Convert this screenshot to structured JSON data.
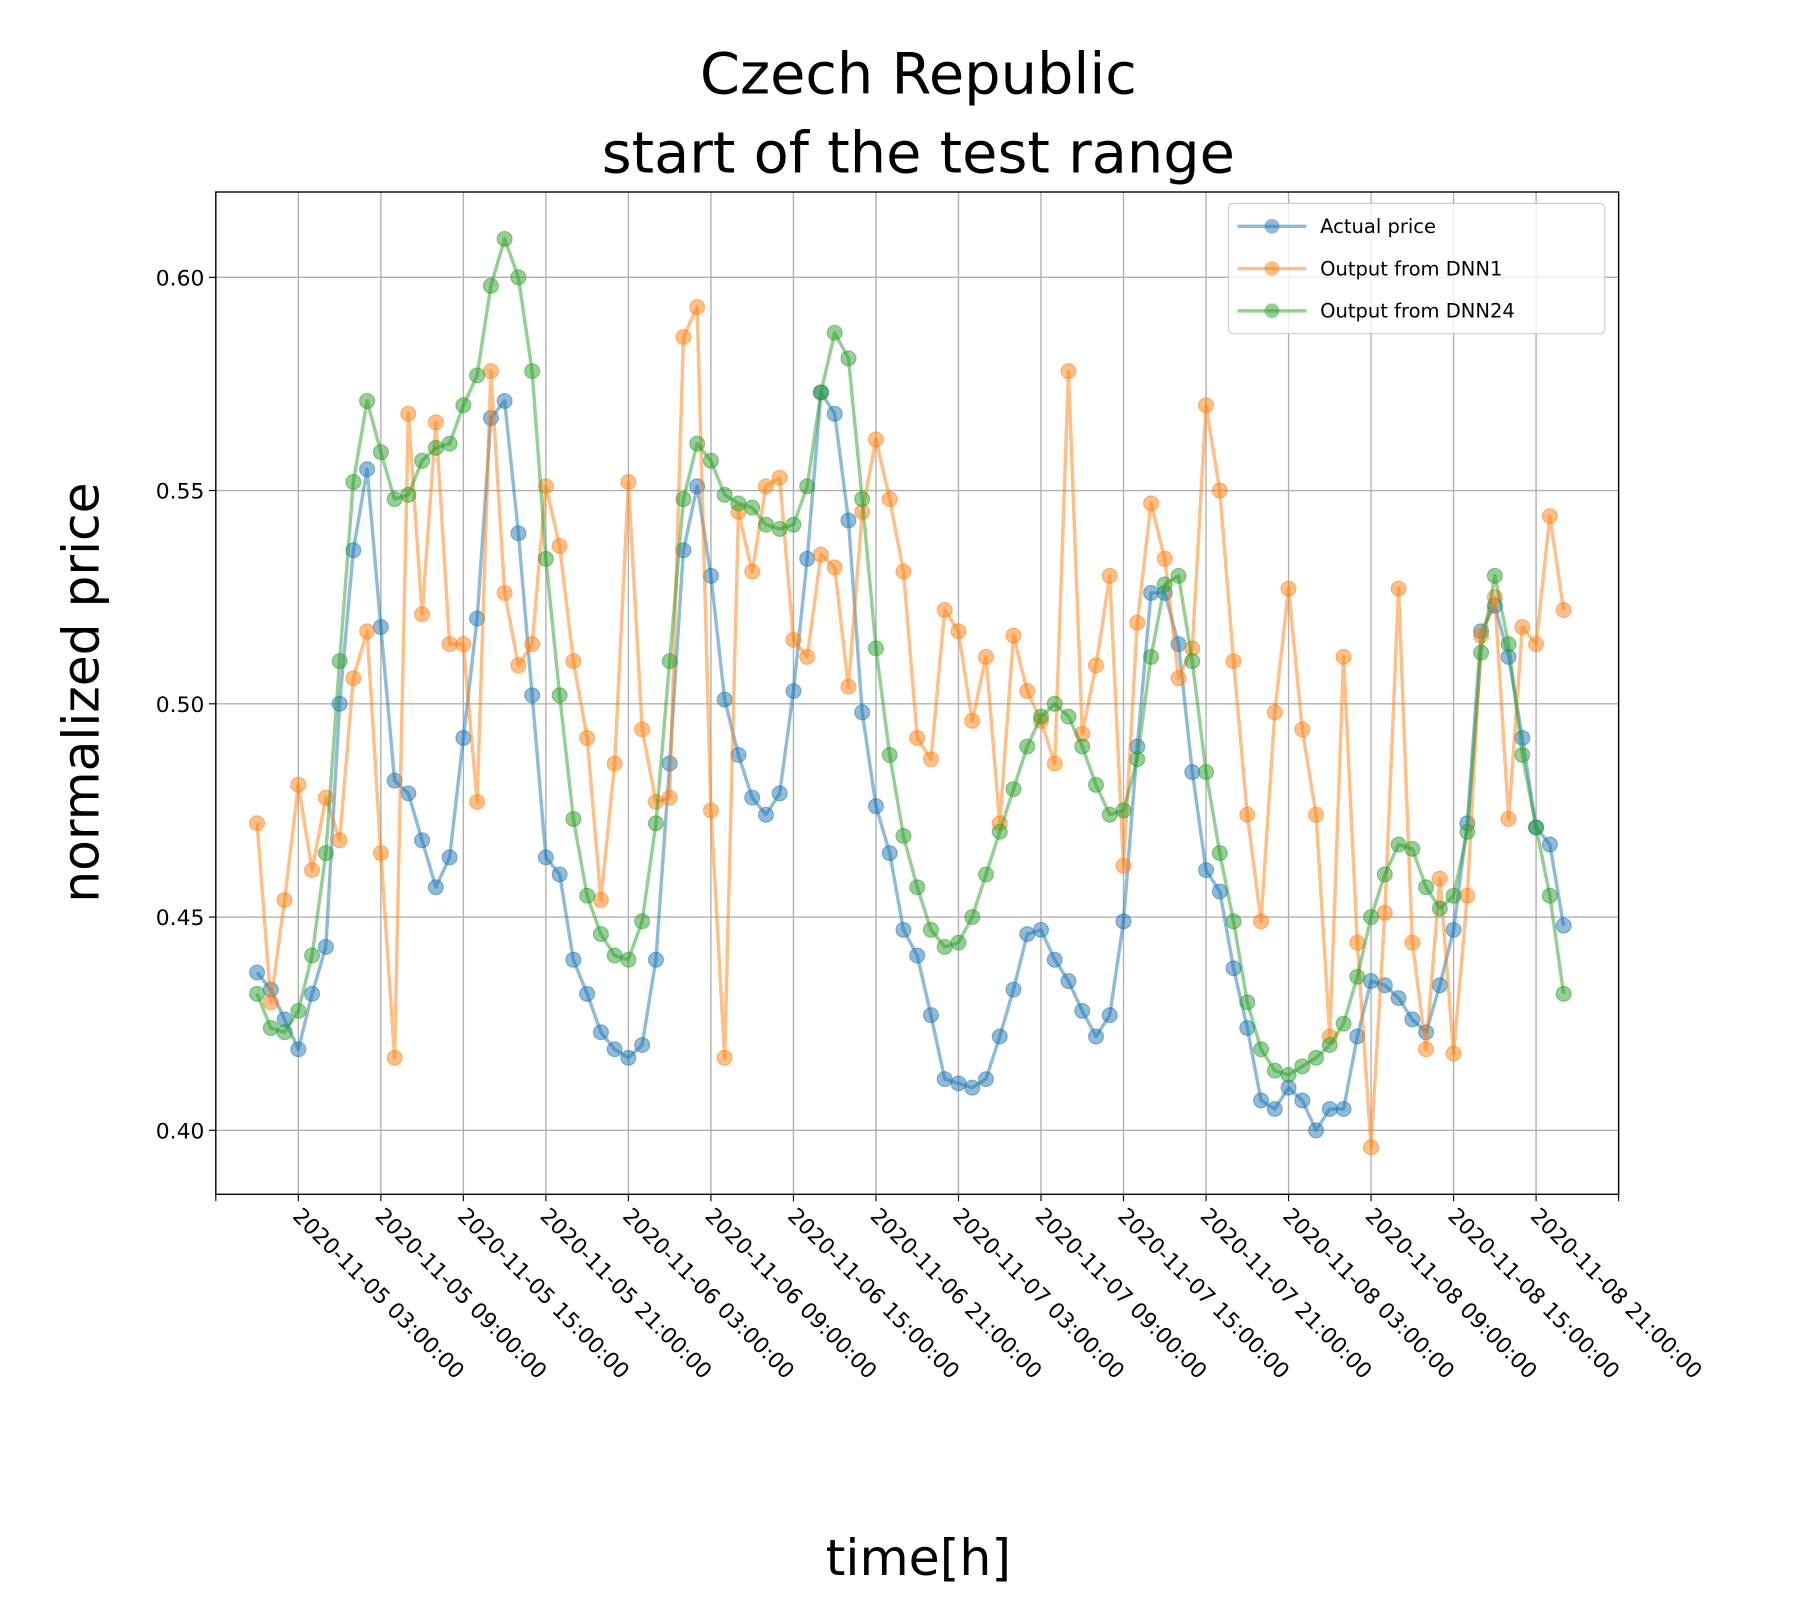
{
  "chart_data": {
    "type": "line",
    "title": "Czech Republic",
    "subtitle": "start of the test range",
    "xlabel": "time[h]",
    "ylabel": "normalized price",
    "ylim": [
      0.385,
      0.62
    ],
    "x_start": "2020-11-05T00:00:00",
    "x_step_hours": 1,
    "x_range_hours": [
      -3,
      99
    ],
    "grid": true,
    "legend_position": "top-right",
    "y_ticks": [
      0.4,
      0.45,
      0.5,
      0.55,
      0.6
    ],
    "y_tick_labels": [
      "0.40",
      "0.45",
      "0.50",
      "0.55",
      "0.60"
    ],
    "x_tick_labels": [
      "2020-11-05 03:00:00",
      "2020-11-05 09:00:00",
      "2020-11-05 15:00:00",
      "2020-11-05 21:00:00",
      "2020-11-06 03:00:00",
      "2020-11-06 09:00:00",
      "2020-11-06 15:00:00",
      "2020-11-06 21:00:00",
      "2020-11-07 03:00:00",
      "2020-11-07 09:00:00",
      "2020-11-07 15:00:00",
      "2020-11-07 21:00:00",
      "2020-11-08 03:00:00",
      "2020-11-08 09:00:00",
      "2020-11-08 15:00:00",
      "2020-11-08 21:00:00"
    ],
    "series": [
      {
        "name": "Actual price",
        "color": "#1f77b4",
        "values": [
          0.437,
          0.433,
          0.426,
          0.419,
          0.432,
          0.443,
          0.5,
          0.536,
          0.555,
          0.518,
          0.482,
          0.479,
          0.468,
          0.457,
          0.464,
          0.492,
          0.52,
          0.567,
          0.571,
          0.54,
          0.502,
          0.464,
          0.46,
          0.44,
          0.432,
          0.423,
          0.419,
          0.417,
          0.42,
          0.44,
          0.486,
          0.536,
          0.551,
          0.53,
          0.501,
          0.488,
          0.478,
          0.474,
          0.479,
          0.503,
          0.534,
          0.573,
          0.568,
          0.543,
          0.498,
          0.476,
          0.465,
          0.447,
          0.441,
          0.427,
          0.412,
          0.411,
          0.41,
          0.412,
          0.422,
          0.433,
          0.446,
          0.447,
          0.44,
          0.435,
          0.428,
          0.422,
          0.427,
          0.449,
          0.49,
          0.526,
          0.526,
          0.514,
          0.484,
          0.461,
          0.456,
          0.438,
          0.424,
          0.407,
          0.405,
          0.41,
          0.407,
          0.4,
          0.405,
          0.405,
          0.422,
          0.435,
          0.434,
          0.431,
          0.426,
          0.423,
          0.434,
          0.447,
          0.472,
          0.517,
          0.523,
          0.511,
          0.492,
          0.471,
          0.467,
          0.448
        ]
      },
      {
        "name": "Output from DNN1",
        "color": "#ff7f0e",
        "values": [
          0.472,
          0.43,
          0.454,
          0.481,
          0.461,
          0.478,
          0.468,
          0.506,
          0.517,
          0.465,
          0.417,
          0.568,
          0.521,
          0.566,
          0.514,
          0.514,
          0.477,
          0.578,
          0.526,
          0.509,
          0.514,
          0.551,
          0.537,
          0.51,
          0.492,
          0.454,
          0.486,
          0.552,
          0.494,
          0.477,
          0.478,
          0.586,
          0.593,
          0.475,
          0.417,
          0.545,
          0.531,
          0.551,
          0.553,
          0.515,
          0.511,
          0.535,
          0.532,
          0.504,
          0.545,
          0.562,
          0.548,
          0.531,
          0.492,
          0.487,
          0.522,
          0.517,
          0.496,
          0.511,
          0.472,
          0.516,
          0.503,
          0.496,
          0.486,
          0.578,
          0.493,
          0.509,
          0.53,
          0.462,
          0.519,
          0.547,
          0.534,
          0.506,
          0.513,
          0.57,
          0.55,
          0.51,
          0.474,
          0.449,
          0.498,
          0.527,
          0.494,
          0.474,
          0.422,
          0.511,
          0.444,
          0.396,
          0.451,
          0.527,
          0.444,
          0.419,
          0.459,
          0.418,
          0.455,
          0.516,
          0.525,
          0.473,
          0.518,
          0.514,
          0.544,
          0.522
        ]
      },
      {
        "name": "Output from DNN24",
        "color": "#2ca02c",
        "values": [
          0.432,
          0.424,
          0.423,
          0.428,
          0.441,
          0.465,
          0.51,
          0.552,
          0.571,
          0.559,
          0.548,
          0.549,
          0.557,
          0.56,
          0.561,
          0.57,
          0.577,
          0.598,
          0.609,
          0.6,
          0.578,
          0.534,
          0.502,
          0.473,
          0.455,
          0.446,
          0.441,
          0.44,
          0.449,
          0.472,
          0.51,
          0.548,
          0.561,
          0.557,
          0.549,
          0.547,
          0.546,
          0.542,
          0.541,
          0.542,
          0.551,
          0.573,
          0.587,
          0.581,
          0.548,
          0.513,
          0.488,
          0.469,
          0.457,
          0.447,
          0.443,
          0.444,
          0.45,
          0.46,
          0.47,
          0.48,
          0.49,
          0.497,
          0.5,
          0.497,
          0.49,
          0.481,
          0.474,
          0.475,
          0.487,
          0.511,
          0.528,
          0.53,
          0.51,
          0.484,
          0.465,
          0.449,
          0.43,
          0.419,
          0.414,
          0.413,
          0.415,
          0.417,
          0.42,
          0.425,
          0.436,
          0.45,
          0.46,
          0.467,
          0.466,
          0.457,
          0.452,
          0.455,
          0.47,
          0.512,
          0.53,
          0.514,
          0.488,
          0.471,
          0.455,
          0.432
        ]
      }
    ]
  }
}
